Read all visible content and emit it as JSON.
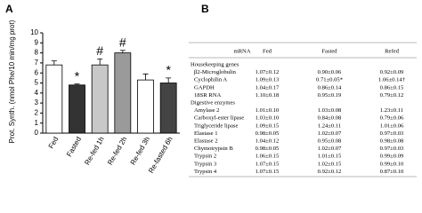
{
  "chart_data": {
    "type": "bar",
    "panel_label": "A",
    "y_label": "Prot. Synth. (nmol Phe/10 min/mg prot)",
    "categories": [
      "Fed",
      "Fasted",
      "Re-fed 1h",
      "Re-fed 2h",
      "Re-fed 3h",
      "Re-fasted 6h"
    ],
    "values": [
      6.8,
      4.8,
      6.8,
      8.0,
      5.3,
      5.0
    ],
    "errors": [
      0.4,
      0.1,
      0.6,
      0.25,
      0.6,
      0.5
    ],
    "colors": [
      "#ffffff",
      "#333333",
      "#c8c8c8",
      "#9a9a9a",
      "#ffffff",
      "#444444"
    ],
    "ylim": [
      0,
      10
    ],
    "yticks": [
      0,
      1,
      2,
      3,
      4,
      5,
      6,
      7,
      8,
      9,
      10
    ],
    "annotations": [
      {
        "text": "*",
        "category": "Fasted"
      },
      {
        "text": "#",
        "category": "Re-fed 1h"
      },
      {
        "text": "#",
        "category": "Re-fed 2h"
      },
      {
        "text": "*",
        "category": "Re-fasted 6h"
      }
    ]
  },
  "panel_b": {
    "panel_label": "B",
    "table": {
      "header": [
        "mRNA",
        "Fed",
        "Fasted",
        "Refed"
      ],
      "sections": [
        {
          "title": "Housekeeping genes",
          "rows": [
            [
              "β2-Microglobulin",
              "1.07±0.12",
              "0.90±0.06",
              "0.92±0.09"
            ],
            [
              "Cyclophilin A",
              "1.09±0.13",
              "0.71±0.05*",
              "1.06±0.14†"
            ],
            [
              "GAPDH",
              "1.04±0.17",
              "0.86±0.14",
              "0.86±0.15"
            ],
            [
              "18SR RNA",
              "1.10±0.18",
              "0.95±0.19",
              "0.79±0.12"
            ]
          ]
        },
        {
          "title": "Digestive enzymes",
          "rows": [
            [
              "Amylase 2",
              "1.01±0.10",
              "1.03±0.08",
              "1.23±0.11"
            ],
            [
              "Carboxyl-ester lipase",
              "1.03±0.10",
              "0.84±0.08",
              "0.79±0.06"
            ],
            [
              "Triglyceride lipase",
              "1.09±0.15",
              "1.24±0.11",
              "1.01±0.06"
            ],
            [
              "Elastase 1",
              "0.98±0.05",
              "1.02±0.07",
              "0.97±0.03"
            ],
            [
              "Elastase 2",
              "1.04±0.12",
              "0.95±0.08",
              "0.98±0.08"
            ],
            [
              "Chymotrypsin B",
              "0.98±0.05",
              "1.02±0.07",
              "0.97±0.03"
            ],
            [
              "Trypsin 2",
              "1.06±0.15",
              "1.01±0.15",
              "0.99±0.09"
            ],
            [
              "Trypsin 3",
              "1.07±0.15",
              "1.02±0.15",
              "0.99±0.10"
            ],
            [
              "Trypsin 4",
              "1.07±0.15",
              "0.92±0.12",
              "0.87±0.10"
            ]
          ]
        }
      ]
    }
  }
}
